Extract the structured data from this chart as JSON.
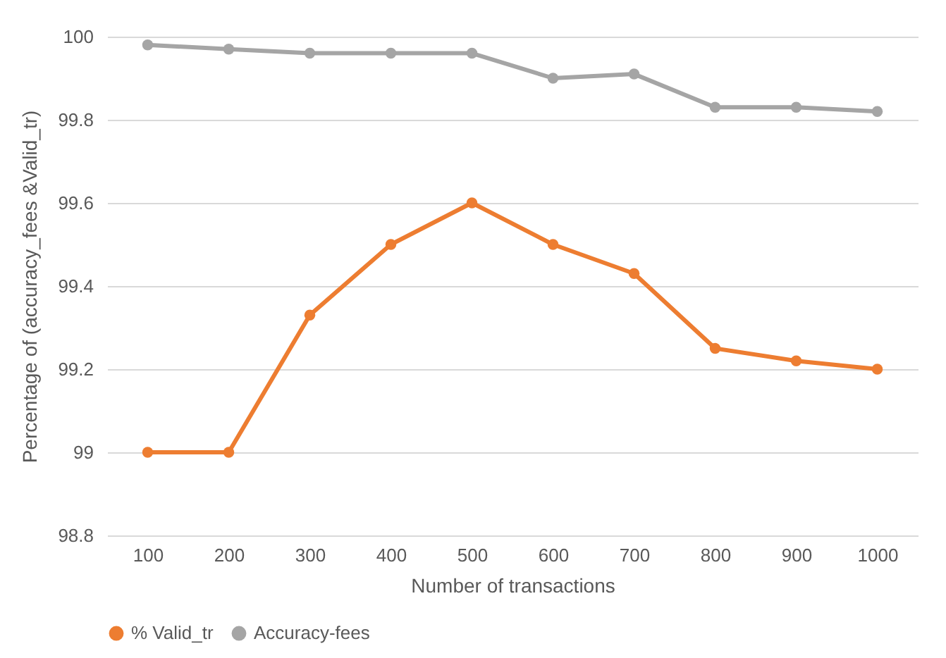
{
  "chart_data": {
    "type": "line",
    "xlabel": "Number of transactions",
    "ylabel": "Percentage of (accuracy_fees &Valid_tr)",
    "categories": [
      "100",
      "200",
      "300",
      "400",
      "500",
      "600",
      "700",
      "800",
      "900",
      "1000"
    ],
    "series": [
      {
        "name": "% Valid_tr",
        "color": "#ed7d31",
        "values": [
          99.0,
          99.0,
          99.33,
          99.5,
          99.6,
          99.5,
          99.43,
          99.25,
          99.22,
          99.2
        ]
      },
      {
        "name": "Accuracy-fees",
        "color": "#a5a5a5",
        "values": [
          99.98,
          99.97,
          99.96,
          99.96,
          99.96,
          99.9,
          99.91,
          99.83,
          99.83,
          99.82
        ]
      }
    ],
    "ylim": [
      98.8,
      100
    ],
    "yticks": [
      98.8,
      99,
      99.2,
      99.4,
      99.6,
      99.8,
      100
    ],
    "grid": "y",
    "legend": "bottom",
    "marker": "circle",
    "line_style": "solid"
  }
}
